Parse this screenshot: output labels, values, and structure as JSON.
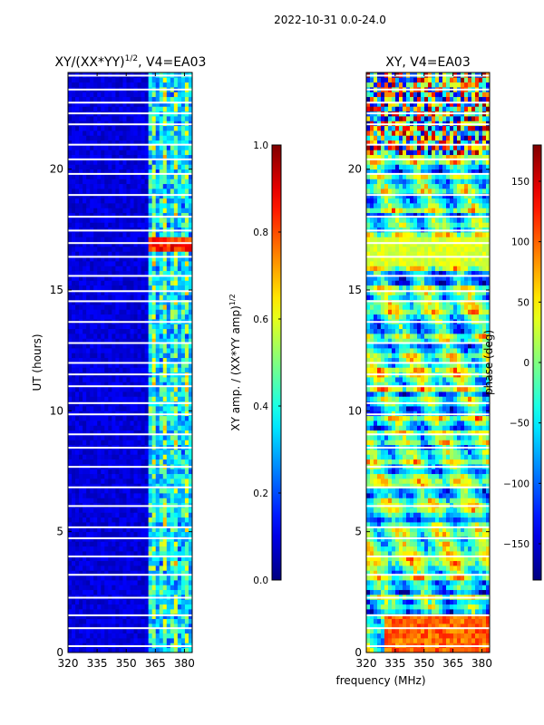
{
  "figure": {
    "suptitle": "2022-10-31 0.0-24.0",
    "shared_xlabel": "frequency (MHz)"
  },
  "chart_data": [
    {
      "type": "heatmap",
      "title": "XY/(XX*YY)",
      "title_superscript": "1/2",
      "title_suffix": ", V4=EA03",
      "xlabel": "",
      "ylabel": "UT (hours)",
      "xlim": [
        320,
        384
      ],
      "ylim": [
        0,
        24
      ],
      "xticks": [
        320,
        335,
        350,
        365,
        380
      ],
      "yticks": [
        0,
        5,
        10,
        15,
        20
      ],
      "colormap": "jet",
      "colorbar": {
        "label": "XY amp. / (XX*YY amp)",
        "label_superscript": "1/2",
        "range": [
          0.0,
          1.0
        ],
        "ticks": [
          0.0,
          0.2,
          0.4,
          0.6,
          0.8,
          1.0
        ],
        "tick_labels": [
          "0.0",
          "0.2",
          "0.4",
          "0.6",
          "0.8",
          "1.0"
        ]
      },
      "signal_band_mhz": [
        360,
        384
      ]
    },
    {
      "type": "heatmap",
      "title": "XY, V4=EA03",
      "xlabel": "frequency (MHz)",
      "ylabel": "",
      "xlim": [
        320,
        384
      ],
      "ylim": [
        0,
        24
      ],
      "xticks": [
        320,
        335,
        350,
        365,
        380
      ],
      "yticks": [
        0,
        5,
        10,
        15,
        20
      ],
      "colormap": "jet",
      "colorbar": {
        "label": "phase (deg)",
        "range": [
          -180,
          180
        ],
        "ticks": [
          -150,
          -100,
          -50,
          0,
          50,
          100,
          150
        ],
        "tick_labels": [
          "−150",
          "−100",
          "−50",
          "0",
          "50",
          "100",
          "150"
        ]
      }
    }
  ],
  "colors": {
    "low": "#00007f",
    "mid": "#7fff7f",
    "high": "#7f0000",
    "gap": "#ffffff"
  }
}
